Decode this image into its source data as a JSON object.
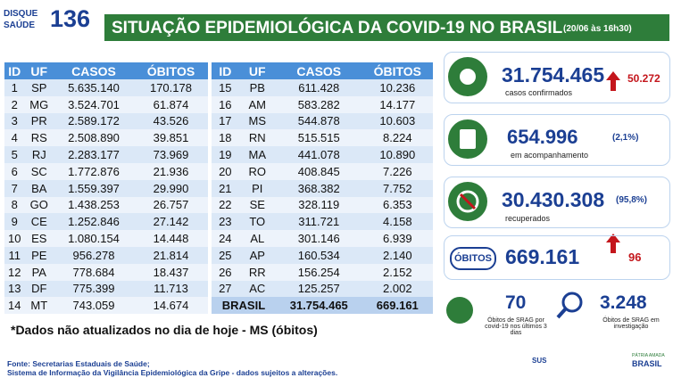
{
  "header": {
    "logo_line1": "DISQUE",
    "logo_line2": "SAÚDE",
    "logo_number": "136",
    "title": "SITUAÇÃO EPIDEMIOLÓGICA DA COVID-19 NO BRASIL",
    "date": "(20/06 às 16h30)"
  },
  "table": {
    "columns": [
      "ID",
      "UF",
      "CASOS",
      "ÓBITOS"
    ],
    "rows": [
      [
        "1",
        "SP",
        "5.635.140",
        "170.178"
      ],
      [
        "2",
        "MG",
        "3.524.701",
        "61.874"
      ],
      [
        "3",
        "PR",
        "2.589.172",
        "43.526"
      ],
      [
        "4",
        "RS",
        "2.508.890",
        "39.851"
      ],
      [
        "5",
        "RJ",
        "2.283.177",
        "73.969"
      ],
      [
        "6",
        "SC",
        "1.772.876",
        "21.936"
      ],
      [
        "7",
        "BA",
        "1.559.397",
        "29.990"
      ],
      [
        "8",
        "GO",
        "1.438.253",
        "26.757"
      ],
      [
        "9",
        "CE",
        "1.252.846",
        "27.142"
      ],
      [
        "10",
        "ES",
        "1.080.154",
        "14.448"
      ],
      [
        "11",
        "PE",
        "956.278",
        "21.814"
      ],
      [
        "12",
        "PA",
        "778.684",
        "18.437"
      ],
      [
        "13",
        "DF",
        "775.399",
        "11.713"
      ],
      [
        "14",
        "MT",
        "743.059",
        "14.674"
      ],
      [
        "15",
        "PB",
        "611.428",
        "10.236"
      ],
      [
        "16",
        "AM",
        "583.282",
        "14.177"
      ],
      [
        "17",
        "MS",
        "544.878",
        "10.603"
      ],
      [
        "18",
        "RN",
        "515.515",
        "8.224"
      ],
      [
        "19",
        "MA",
        "441.078",
        "10.890"
      ],
      [
        "20",
        "RO",
        "408.845",
        "7.226"
      ],
      [
        "21",
        "PI",
        "368.382",
        "7.752"
      ],
      [
        "22",
        "SE",
        "328.119",
        "6.353"
      ],
      [
        "23",
        "TO",
        "311.721",
        "4.158"
      ],
      [
        "24",
        "AL",
        "301.146",
        "6.939"
      ],
      [
        "25",
        "AP",
        "160.534",
        "2.140"
      ],
      [
        "26",
        "RR",
        "156.254",
        "2.152"
      ],
      [
        "27",
        "AC",
        "125.257",
        "2.002"
      ]
    ],
    "total": {
      "label": "BRASIL",
      "casos": "31.754.465",
      "obitos": "669.161"
    }
  },
  "cards": {
    "cases": {
      "value": "31.754.465",
      "change": "50.272",
      "label": "casos confirmados"
    },
    "monitoring": {
      "value": "654.996",
      "percent": "(2,1%)",
      "label": "em acompanhamento"
    },
    "recovered": {
      "value": "30.430.308",
      "percent": "(95,8%)",
      "label": "recuperados"
    },
    "deaths": {
      "label": "ÓBITOS",
      "value": "669.161",
      "change": "96"
    },
    "srag": {
      "value": "70",
      "label": "Óbitos de SRAG por covid-19 nos últimos 3 dias"
    },
    "investigation": {
      "value": "3.248",
      "label": "Óbitos de SRAG em investigação"
    }
  },
  "footnote": "*Dados não atualizados no dia de hoje - MS (óbitos)",
  "source": [
    "Fonte: Secretarias Estaduais de Saúde;",
    "Sistema de Informação da Vigilância Epidemiológica da Gripe - dados sujeitos a alterações."
  ],
  "footer_logos": [
    "SUS",
    "PÁTRIA AMADA",
    "BRASIL"
  ]
}
